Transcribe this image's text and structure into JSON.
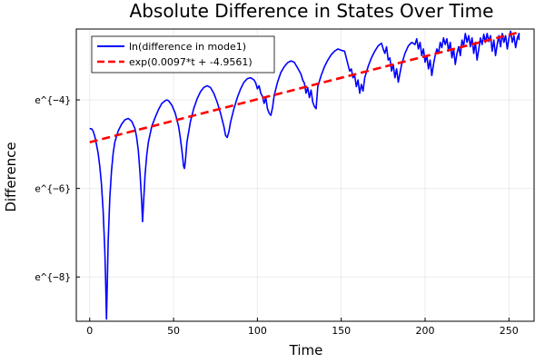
{
  "chart_data": {
    "type": "line",
    "title": "Absolute Difference in States Over Time",
    "xlabel": "Time",
    "ylabel": "Difference",
    "xlim": [
      -8,
      265
    ],
    "ylim": [
      -9.0,
      -2.4
    ],
    "x_ticks": [
      0,
      50,
      100,
      150,
      200,
      250
    ],
    "y_ticks": [
      {
        "value": -4,
        "label": "e^{−4}"
      },
      {
        "value": -6,
        "label": "e^{−6}"
      },
      {
        "value": -8,
        "label": "e^{−8}"
      }
    ],
    "grid": true,
    "legend_position": "top-left",
    "series": [
      {
        "name": "ln(difference in mode1)",
        "color": "#0000ff",
        "style": "solid",
        "points": [
          [
            0,
            -4.65
          ],
          [
            1,
            -4.65
          ],
          [
            2,
            -4.7
          ],
          [
            3,
            -4.82
          ],
          [
            4,
            -5.0
          ],
          [
            5,
            -5.2
          ],
          [
            6,
            -5.5
          ],
          [
            7,
            -5.9
          ],
          [
            8,
            -6.5
          ],
          [
            9,
            -7.4
          ],
          [
            9.5,
            -8.1
          ],
          [
            10,
            -8.95
          ],
          [
            10.5,
            -8.1
          ],
          [
            11,
            -7.2
          ],
          [
            12,
            -6.2
          ],
          [
            13,
            -5.6
          ],
          [
            14,
            -5.2
          ],
          [
            15,
            -4.95
          ],
          [
            17,
            -4.7
          ],
          [
            19,
            -4.55
          ],
          [
            21,
            -4.45
          ],
          [
            23,
            -4.42
          ],
          [
            25,
            -4.48
          ],
          [
            27,
            -4.65
          ],
          [
            28,
            -4.85
          ],
          [
            29,
            -5.15
          ],
          [
            30,
            -5.65
          ],
          [
            31,
            -6.3
          ],
          [
            31.5,
            -6.75
          ],
          [
            32,
            -6.4
          ],
          [
            33,
            -5.7
          ],
          [
            34,
            -5.25
          ],
          [
            35,
            -4.95
          ],
          [
            37,
            -4.6
          ],
          [
            39,
            -4.4
          ],
          [
            41,
            -4.22
          ],
          [
            43,
            -4.08
          ],
          [
            45,
            -4.02
          ],
          [
            46,
            -4.0
          ],
          [
            47,
            -4.02
          ],
          [
            49,
            -4.12
          ],
          [
            51,
            -4.3
          ],
          [
            53,
            -4.6
          ],
          [
            54,
            -4.85
          ],
          [
            55,
            -5.15
          ],
          [
            56,
            -5.5
          ],
          [
            56.5,
            -5.55
          ],
          [
            57,
            -5.4
          ],
          [
            58,
            -4.95
          ],
          [
            60,
            -4.5
          ],
          [
            62,
            -4.2
          ],
          [
            64,
            -3.98
          ],
          [
            66,
            -3.82
          ],
          [
            68,
            -3.72
          ],
          [
            70,
            -3.68
          ],
          [
            72,
            -3.72
          ],
          [
            74,
            -3.85
          ],
          [
            76,
            -4.05
          ],
          [
            78,
            -4.3
          ],
          [
            80,
            -4.6
          ],
          [
            81,
            -4.8
          ],
          [
            82,
            -4.85
          ],
          [
            83,
            -4.72
          ],
          [
            84,
            -4.5
          ],
          [
            86,
            -4.2
          ],
          [
            88,
            -3.95
          ],
          [
            90,
            -3.75
          ],
          [
            92,
            -3.6
          ],
          [
            94,
            -3.52
          ],
          [
            96,
            -3.5
          ],
          [
            98,
            -3.55
          ],
          [
            99,
            -3.62
          ],
          [
            100,
            -3.75
          ],
          [
            101,
            -3.68
          ],
          [
            102,
            -3.85
          ],
          [
            103,
            -3.92
          ],
          [
            104,
            -4.08
          ],
          [
            105,
            -3.95
          ],
          [
            106,
            -4.2
          ],
          [
            107,
            -4.3
          ],
          [
            108,
            -4.35
          ],
          [
            109,
            -4.18
          ],
          [
            110,
            -3.9
          ],
          [
            112,
            -3.6
          ],
          [
            114,
            -3.38
          ],
          [
            116,
            -3.25
          ],
          [
            118,
            -3.16
          ],
          [
            120,
            -3.12
          ],
          [
            122,
            -3.15
          ],
          [
            124,
            -3.28
          ],
          [
            126,
            -3.42
          ],
          [
            127,
            -3.55
          ],
          [
            128,
            -3.62
          ],
          [
            129,
            -3.85
          ],
          [
            130,
            -3.72
          ],
          [
            131,
            -3.95
          ],
          [
            132,
            -3.78
          ],
          [
            133,
            -4.05
          ],
          [
            134,
            -4.15
          ],
          [
            135,
            -4.2
          ],
          [
            135.5,
            -3.95
          ],
          [
            136,
            -3.7
          ],
          [
            138,
            -3.45
          ],
          [
            140,
            -3.25
          ],
          [
            142,
            -3.1
          ],
          [
            144,
            -2.98
          ],
          [
            146,
            -2.9
          ],
          [
            148,
            -2.85
          ],
          [
            150,
            -2.88
          ],
          [
            152,
            -2.9
          ],
          [
            153,
            -3.05
          ],
          [
            154,
            -3.2
          ],
          [
            155,
            -3.35
          ],
          [
            156,
            -3.3
          ],
          [
            157,
            -3.5
          ],
          [
            158,
            -3.45
          ],
          [
            159,
            -3.7
          ],
          [
            160,
            -3.55
          ],
          [
            161,
            -3.85
          ],
          [
            162,
            -3.65
          ],
          [
            163,
            -3.8
          ],
          [
            164,
            -3.5
          ],
          [
            166,
            -3.25
          ],
          [
            168,
            -3.05
          ],
          [
            170,
            -2.9
          ],
          [
            172,
            -2.78
          ],
          [
            174,
            -2.72
          ],
          [
            175,
            -2.85
          ],
          [
            176,
            -2.95
          ],
          [
            177,
            -2.8
          ],
          [
            178,
            -3.1
          ],
          [
            179,
            -3.05
          ],
          [
            180,
            -3.35
          ],
          [
            181,
            -3.2
          ],
          [
            182,
            -3.5
          ],
          [
            183,
            -3.3
          ],
          [
            184,
            -3.6
          ],
          [
            185,
            -3.4
          ],
          [
            186,
            -3.2
          ],
          [
            188,
            -2.95
          ],
          [
            190,
            -2.78
          ],
          [
            192,
            -2.7
          ],
          [
            194,
            -2.75
          ],
          [
            195,
            -2.62
          ],
          [
            196,
            -2.85
          ],
          [
            197,
            -2.7
          ],
          [
            198,
            -3.0
          ],
          [
            199,
            -2.85
          ],
          [
            200,
            -3.15
          ],
          [
            201,
            -3.0
          ],
          [
            202,
            -3.3
          ],
          [
            203,
            -3.1
          ],
          [
            204,
            -3.45
          ],
          [
            205,
            -3.2
          ],
          [
            206,
            -3.0
          ],
          [
            207,
            -2.85
          ],
          [
            208,
            -2.95
          ],
          [
            209,
            -2.7
          ],
          [
            210,
            -2.82
          ],
          [
            211,
            -2.6
          ],
          [
            212,
            -2.75
          ],
          [
            213,
            -2.62
          ],
          [
            214,
            -2.9
          ],
          [
            215,
            -2.7
          ],
          [
            216,
            -3.05
          ],
          [
            217,
            -2.85
          ],
          [
            218,
            -3.2
          ],
          [
            219,
            -2.95
          ],
          [
            220,
            -2.8
          ],
          [
            221,
            -3.0
          ],
          [
            222,
            -2.65
          ],
          [
            223,
            -2.78
          ],
          [
            224,
            -2.5
          ],
          [
            225,
            -2.7
          ],
          [
            226,
            -2.55
          ],
          [
            227,
            -2.8
          ],
          [
            228,
            -2.6
          ],
          [
            229,
            -2.95
          ],
          [
            230,
            -2.7
          ],
          [
            231,
            -3.1
          ],
          [
            232,
            -2.85
          ],
          [
            233,
            -2.6
          ],
          [
            234,
            -2.75
          ],
          [
            235,
            -2.52
          ],
          [
            236,
            -2.7
          ],
          [
            237,
            -2.5
          ],
          [
            238,
            -2.68
          ],
          [
            239,
            -2.55
          ],
          [
            240,
            -2.9
          ],
          [
            241,
            -2.65
          ],
          [
            242,
            -3.0
          ],
          [
            243,
            -2.75
          ],
          [
            244,
            -2.55
          ],
          [
            245,
            -2.8
          ],
          [
            246,
            -2.5
          ],
          [
            247,
            -2.7
          ],
          [
            248,
            -2.55
          ],
          [
            249,
            -2.85
          ],
          [
            250,
            -2.6
          ],
          [
            251,
            -2.45
          ],
          [
            252,
            -2.7
          ],
          [
            253,
            -2.55
          ],
          [
            254,
            -2.82
          ],
          [
            255,
            -2.6
          ],
          [
            256,
            -2.5
          ],
          [
            256,
            -2.65
          ]
        ]
      },
      {
        "name": "exp(0.0097*t + -4.9561)",
        "color": "#ff0000",
        "style": "dashed",
        "slope": 0.0097,
        "intercept": -4.9561,
        "x_range": [
          0,
          255
        ]
      }
    ]
  }
}
